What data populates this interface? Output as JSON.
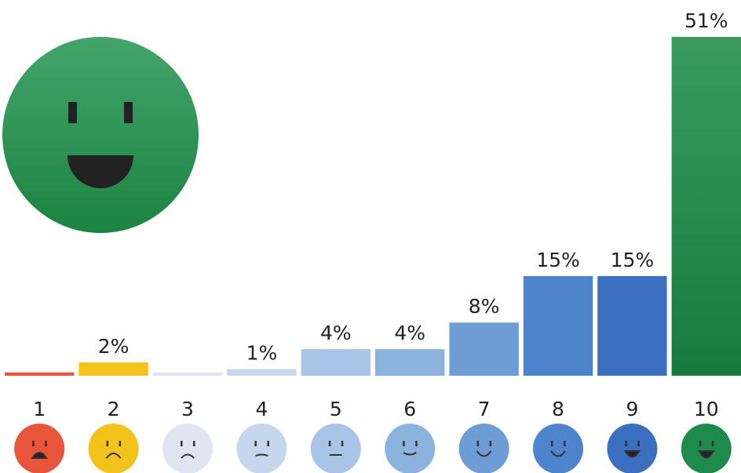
{
  "chart_data": {
    "type": "bar",
    "categories": [
      "1",
      "2",
      "3",
      "4",
      "5",
      "6",
      "7",
      "8",
      "9",
      "10"
    ],
    "values": [
      0.5,
      2,
      0.5,
      1,
      4,
      4,
      8,
      15,
      15,
      51
    ],
    "value_labels": [
      null,
      "2%",
      null,
      "1%",
      "4%",
      "4%",
      "8%",
      "15%",
      "15%",
      "51%"
    ],
    "colors": [
      "#e8553b",
      "#f3c31c",
      "#dfe6f1",
      "#c6d6ec",
      "#a9c4e6",
      "#8cb2de",
      "#6e9dd5",
      "#4d84cb",
      "#3a70bf",
      "#1e8a4b"
    ]
  }
}
